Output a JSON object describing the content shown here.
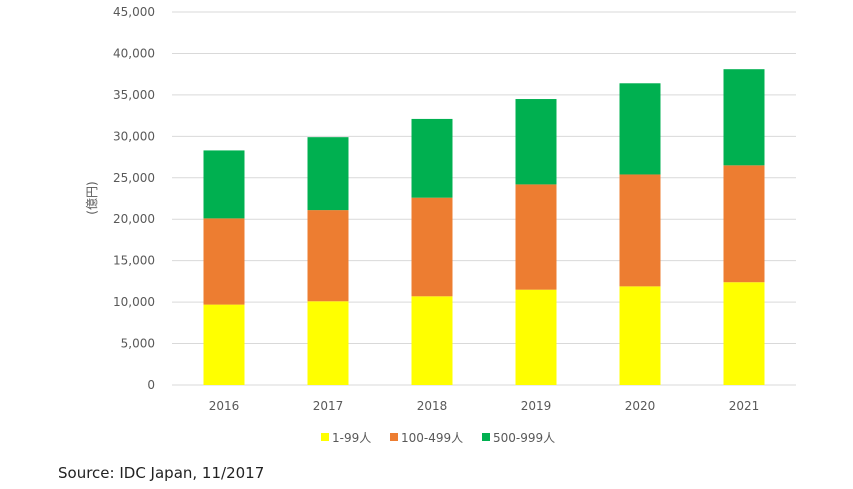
{
  "chart_data": {
    "type": "bar",
    "stacked": true,
    "title": "",
    "xlabel": "",
    "ylabel": "(億円)",
    "ylim": [
      0,
      45000
    ],
    "ytick_step": 5000,
    "ytick_labels": [
      "0",
      "5,000",
      "10,000",
      "15,000",
      "20,000",
      "25,000",
      "30,000",
      "35,000",
      "40,000",
      "45,000"
    ],
    "grid": true,
    "legend_position": "bottom",
    "categories": [
      "2016",
      "2017",
      "2018",
      "2019",
      "2020",
      "2021"
    ],
    "series": [
      {
        "name": "1-99人",
        "color": "#FFFF00",
        "values": [
          9700,
          10100,
          10700,
          11500,
          11900,
          12400
        ]
      },
      {
        "name": "100-499人",
        "color": "#ED7D31",
        "values": [
          10400,
          11000,
          11900,
          12700,
          13500,
          14100
        ]
      },
      {
        "name": "500-999人",
        "color": "#00B050",
        "values": [
          8200,
          8800,
          9500,
          10300,
          11000,
          11600
        ]
      }
    ]
  },
  "source": "Source: IDC Japan, 11/2017"
}
